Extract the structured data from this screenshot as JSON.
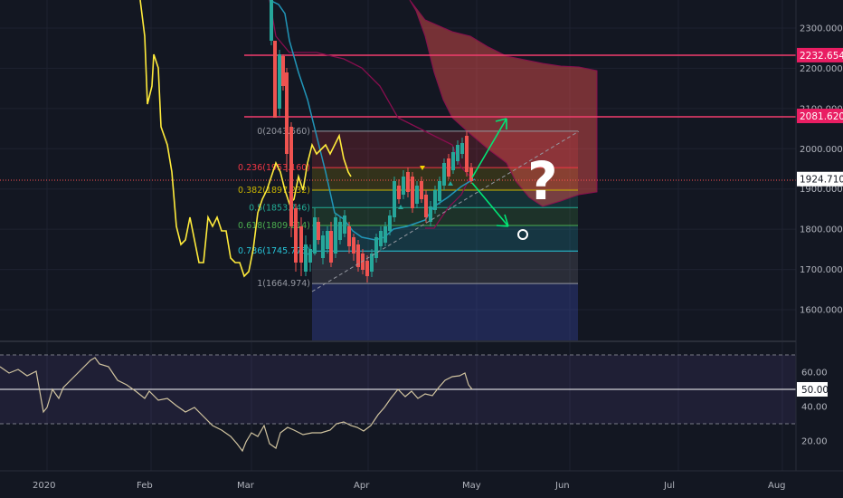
{
  "price_pane": {
    "y_ticks": [
      "2300.000",
      "2200.000",
      "2100.000",
      "2000.000",
      "1900.000",
      "1800.000",
      "1700.000",
      "1600.000"
    ],
    "badges": [
      {
        "label": "2232.654",
        "color": "#e91e63",
        "text_color": "#ffffff",
        "value": 2232.654
      },
      {
        "label": "2081.620",
        "color": "#e91e63",
        "text_color": "#ffffff",
        "value": 2081.62
      },
      {
        "label": "1924.710",
        "color": "#ffffff",
        "text_color": "#131722",
        "value": 1924.71
      }
    ],
    "horizontal_lines": [
      {
        "name": "resistance-line-2232",
        "value": 2232.654,
        "color": "#f23d6d"
      },
      {
        "name": "resistance-line-2081",
        "value": 2081.62,
        "color": "#f23d6d"
      }
    ],
    "last_price": {
      "value": 1924.71,
      "color": "#ff5252"
    }
  },
  "fib_levels": [
    {
      "label": "0(2043.560)",
      "value": 2043.56,
      "color": "#9598a1"
    },
    {
      "label": "0.236(1953.160)",
      "value": 1953.16,
      "color": "#f23645"
    },
    {
      "label": "0.382(1897.232)",
      "value": 1897.232,
      "color": "#c8b400"
    },
    {
      "label": "0.5(1853.746)",
      "value": 1853.746,
      "color": "#22ab94"
    },
    {
      "label": "0.618(1809.214)",
      "value": 1809.214,
      "color": "#4caf50"
    },
    {
      "label": "0.786(1745.775)",
      "value": 1745.775,
      "color": "#26c6da"
    },
    {
      "label": "1(1664.974)",
      "value": 1664.974,
      "color": "#9598a1"
    }
  ],
  "rsi_pane": {
    "y_ticks": [
      "60.00",
      "40.00",
      "20.00"
    ],
    "current": {
      "label": "50.00",
      "value": 50.0
    }
  },
  "x_axis": {
    "labels": [
      "2020",
      "Feb",
      "Mar",
      "Apr",
      "May",
      "Jun",
      "Jul",
      "Aug"
    ]
  },
  "annotations": {
    "question_mark": "?"
  },
  "colors": {
    "background": "#131722",
    "price_line": "#ffeb3b",
    "candle_up": "#26a69a",
    "candle_down": "#ef5350",
    "ma_line": "#2196b9",
    "cloud_upper": "#880e4f",
    "cloud": "#ef5350",
    "rsi_line": "#d1c4a0",
    "rsi_band": "#7e57c2",
    "arrow": "#00e676"
  }
}
